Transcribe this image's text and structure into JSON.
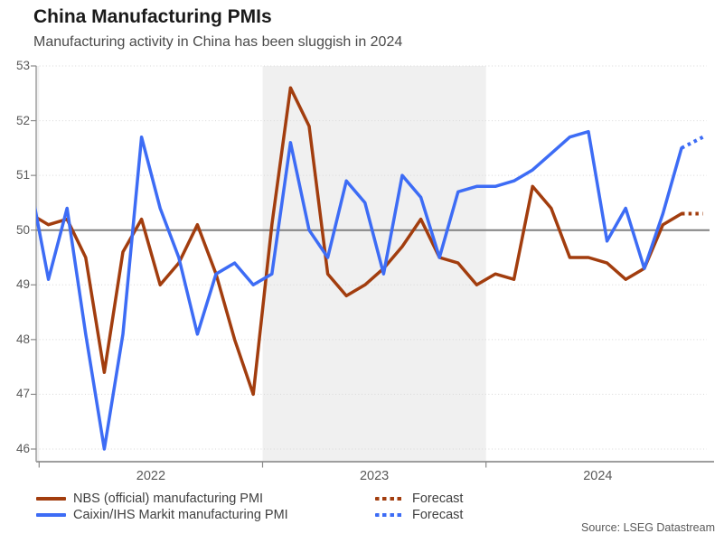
{
  "page": {
    "title": "China Manufacturing PMIs",
    "subtitle": "Manufacturing activity in China has been sluggish in 2024",
    "source": "Source: LSEG Datastream"
  },
  "chart_data": {
    "type": "line",
    "title": "China Manufacturing PMIs",
    "subtitle": "Manufacturing activity in China has been sluggish in 2024",
    "source": "Source: LSEG Datastream",
    "x_tick_labels": [
      "2022",
      "2023",
      "2024"
    ],
    "ylim": [
      46,
      53
    ],
    "y_ticks": [
      46,
      47,
      48,
      49,
      50,
      51,
      52,
      53
    ],
    "reference_line_y": 50,
    "shaded_year": "2023",
    "grid": "dotted horizontal gridlines at each integer",
    "legend_position": "bottom-left",
    "months": [
      "2021-12",
      "2022-01",
      "2022-02",
      "2022-03",
      "2022-04",
      "2022-05",
      "2022-06",
      "2022-07",
      "2022-08",
      "2022-09",
      "2022-10",
      "2022-11",
      "2022-12",
      "2023-01",
      "2023-02",
      "2023-03",
      "2023-04",
      "2023-05",
      "2023-06",
      "2023-07",
      "2023-08",
      "2023-09",
      "2023-10",
      "2023-11",
      "2023-12",
      "2024-01",
      "2024-02",
      "2024-03",
      "2024-04",
      "2024-05",
      "2024-06",
      "2024-07",
      "2024-08",
      "2024-09",
      "2024-10",
      "2024-11"
    ],
    "forecast_month": "2024-12",
    "series": [
      {
        "id": "nbs",
        "name": "NBS (official) manufacturing PMI",
        "color": "#A23D0E",
        "forecast_label": "Forecast",
        "values": [
          50.3,
          50.1,
          50.2,
          49.5,
          47.4,
          49.6,
          50.2,
          49.0,
          49.4,
          50.1,
          49.2,
          48.0,
          47.0,
          50.1,
          52.6,
          51.9,
          49.2,
          48.8,
          49.0,
          49.3,
          49.7,
          50.2,
          49.5,
          49.4,
          49.0,
          49.2,
          49.1,
          50.8,
          50.4,
          49.5,
          49.5,
          49.4,
          49.1,
          49.3,
          50.1,
          50.3
        ],
        "forecast_value": 50.3
      },
      {
        "id": "caixin",
        "name": "Caixin/IHS Markit manufacturing PMI",
        "color": "#3D6CF5",
        "forecast_label": "Forecast",
        "values": [
          50.9,
          49.1,
          50.4,
          48.1,
          46.0,
          48.1,
          51.7,
          50.4,
          49.5,
          48.1,
          49.2,
          49.4,
          49.0,
          49.2,
          51.6,
          50.0,
          49.5,
          50.9,
          50.5,
          49.2,
          51.0,
          50.6,
          49.5,
          50.7,
          50.8,
          50.8,
          50.9,
          51.1,
          51.4,
          51.7,
          51.8,
          49.8,
          50.4,
          49.3,
          50.3,
          51.5
        ],
        "forecast_value": 51.7
      }
    ]
  }
}
